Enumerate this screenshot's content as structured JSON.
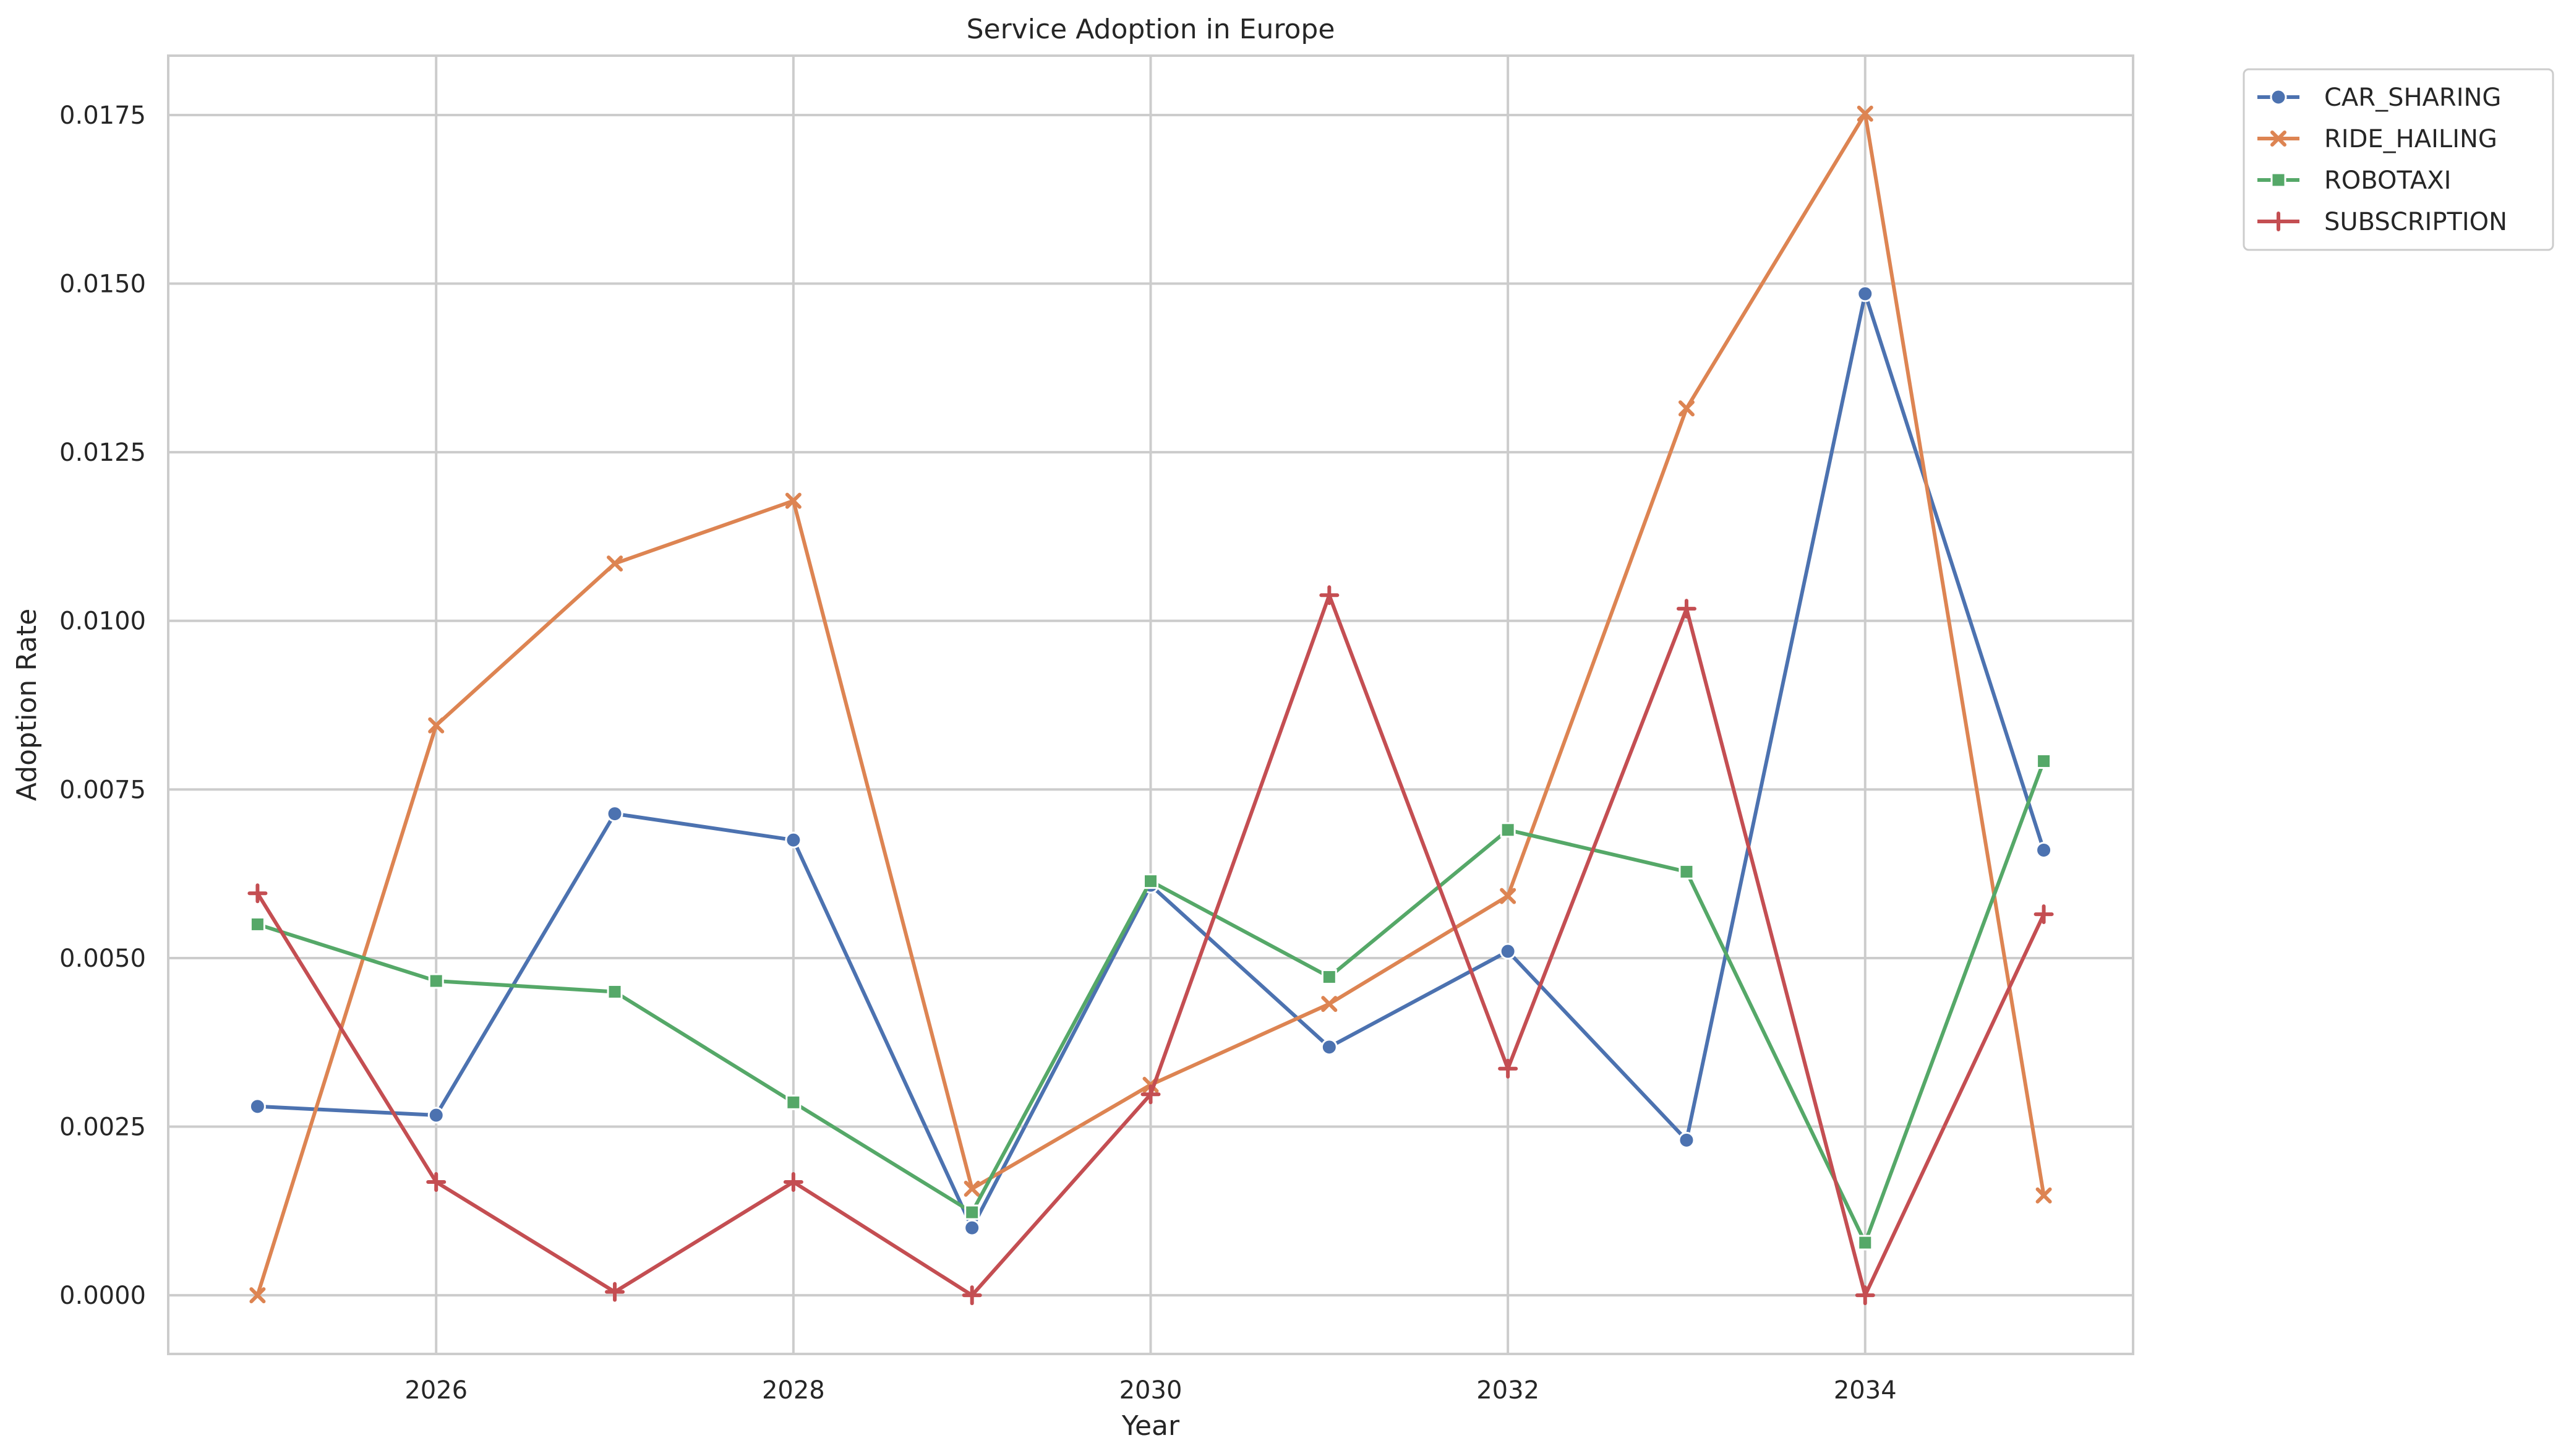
{
  "chart_data": {
    "type": "line",
    "title": "Service Adoption in Europe",
    "xlabel": "Year",
    "ylabel": "Adoption Rate",
    "xlim": [
      2024.5,
      2035.5
    ],
    "ylim": [
      -0.00087,
      0.01838
    ],
    "x_ticks": [
      2026,
      2028,
      2030,
      2032,
      2034
    ],
    "y_ticks": [
      0.0,
      0.0025,
      0.005,
      0.0075,
      0.01,
      0.0125,
      0.015,
      0.0175
    ],
    "x_tick_labels": [
      "2026",
      "2028",
      "2030",
      "2032",
      "2034"
    ],
    "y_tick_labels": [
      "0.0000",
      "0.0025",
      "0.0050",
      "0.0075",
      "0.0100",
      "0.0125",
      "0.0150",
      "0.0175"
    ],
    "grid": true,
    "legend_position": "outside top-right",
    "x": [
      2025,
      2026,
      2027,
      2028,
      2029,
      2030,
      2031,
      2032,
      2033,
      2034,
      2035
    ],
    "series": [
      {
        "name": "CAR_SHARING",
        "color": "#4c72b0",
        "marker": "circle",
        "values": [
          0.0028,
          0.00267,
          0.00714,
          0.00675,
          0.001,
          0.00608,
          0.00368,
          0.0051,
          0.0023,
          0.01485,
          0.0066
        ]
      },
      {
        "name": "RIDE_HAILING",
        "color": "#dd8452",
        "marker": "x",
        "values": [
          0.0,
          0.00845,
          0.01085,
          0.01178,
          0.00158,
          0.00312,
          0.00432,
          0.00592,
          0.01315,
          0.01752,
          0.00148
        ]
      },
      {
        "name": "ROBOTAXI",
        "color": "#55a868",
        "marker": "square",
        "values": [
          0.0055,
          0.00466,
          0.0045,
          0.00286,
          0.00123,
          0.00614,
          0.00472,
          0.0069,
          0.00628,
          0.00078,
          0.00792
        ]
      },
      {
        "name": "SUBSCRIPTION",
        "color": "#c44e52",
        "marker": "plus",
        "values": [
          0.00596,
          0.00168,
          5e-05,
          0.00168,
          0.0,
          0.00298,
          0.01038,
          0.00336,
          0.01018,
          0.0,
          0.00565
        ]
      }
    ]
  }
}
